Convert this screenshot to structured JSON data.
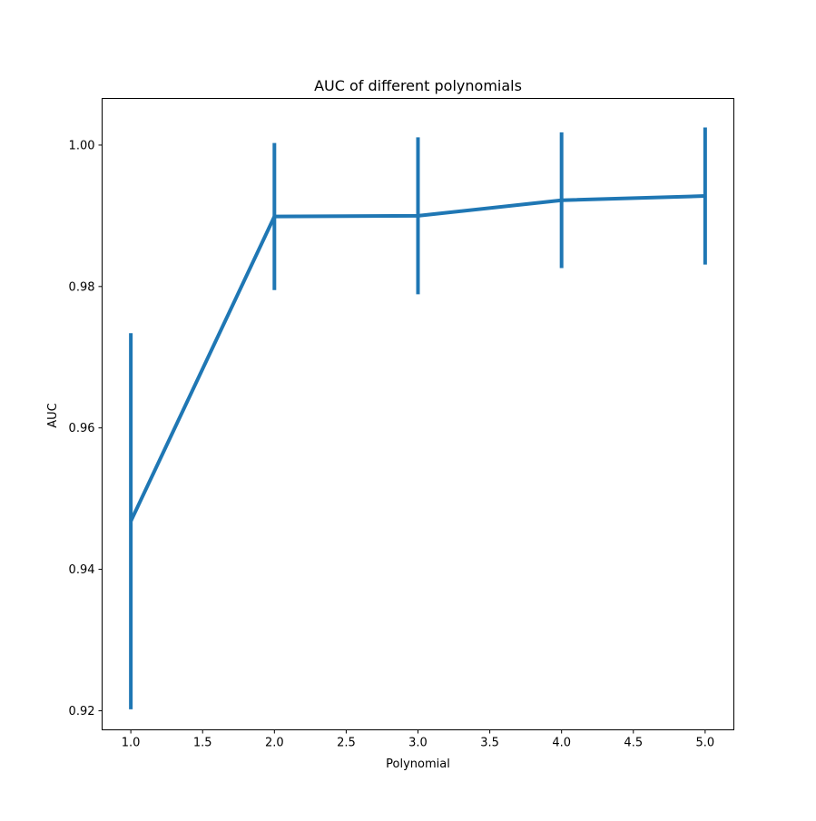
{
  "chart_data": {
    "type": "line",
    "title": "AUC of different polynomials",
    "xlabel": "Polynomial",
    "ylabel": "AUC",
    "xlim": [
      0.8,
      5.2
    ],
    "ylim": [
      0.9173,
      1.0066
    ],
    "xticks": [
      1.0,
      1.5,
      2.0,
      2.5,
      3.0,
      3.5,
      4.0,
      4.5,
      5.0
    ],
    "xtick_labels": [
      "1.0",
      "1.5",
      "2.0",
      "2.5",
      "3.0",
      "3.5",
      "4.0",
      "4.5",
      "5.0"
    ],
    "yticks": [
      0.92,
      0.94,
      0.96,
      0.98,
      1.0
    ],
    "ytick_labels": [
      "0.92",
      "0.94",
      "0.96",
      "0.98",
      "1.00"
    ],
    "grid": false,
    "series": [
      {
        "x": [
          1,
          2,
          3,
          4,
          5
        ],
        "y": [
          0.9468,
          0.9899,
          0.99,
          0.9922,
          0.9928
        ],
        "yerr": [
          0.0266,
          0.0104,
          0.0111,
          0.0096,
          0.0097
        ],
        "color": "#1f77b4"
      }
    ]
  }
}
